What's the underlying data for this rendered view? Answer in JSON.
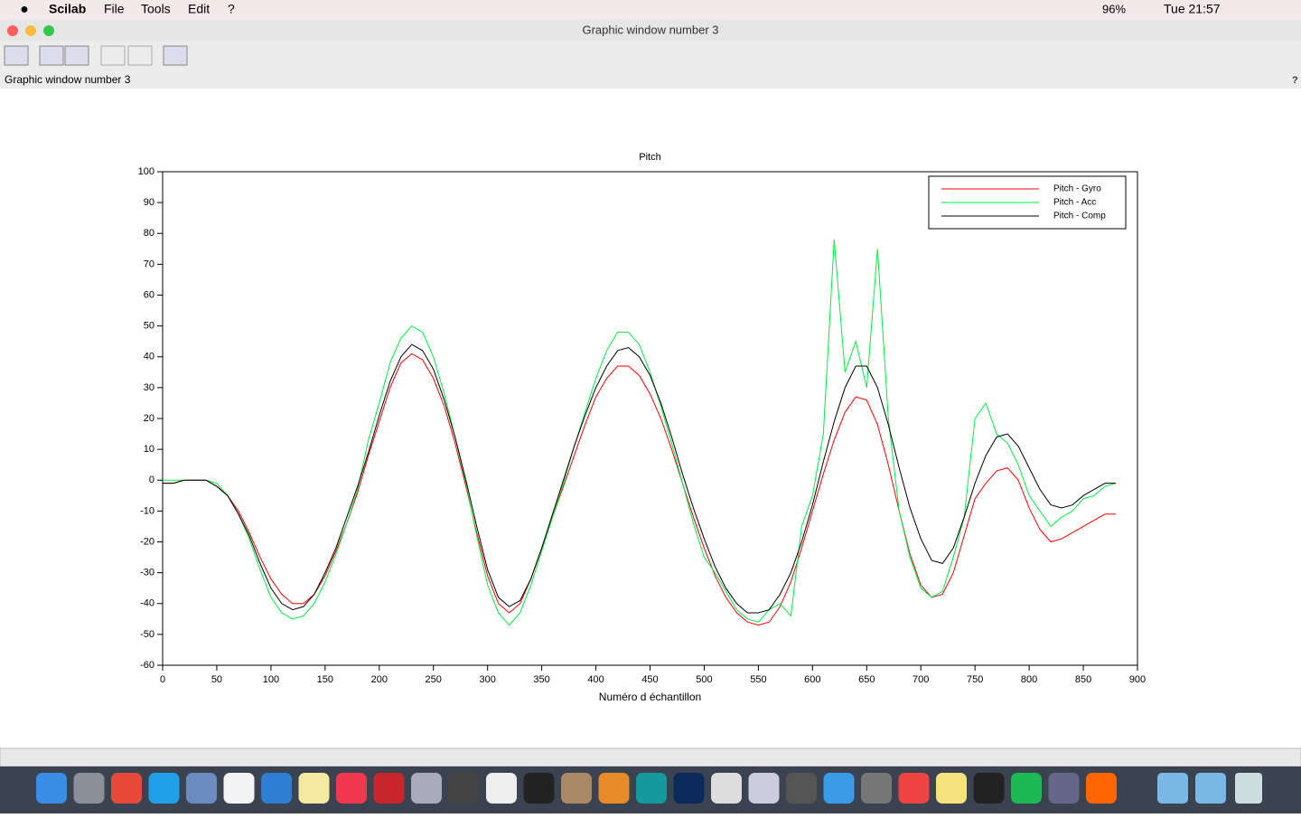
{
  "menubar": {
    "app": "Scilab",
    "menus": [
      "File",
      "Tools",
      "Edit",
      "?"
    ],
    "battery": "96%",
    "clock": "Tue 21:57"
  },
  "window": {
    "title": "Graphic window number 3",
    "label": "Graphic window number 3",
    "help": "?"
  },
  "chart_data": {
    "type": "line",
    "title": "Pitch",
    "x_label": "Numéro d échantillon",
    "x": [
      0,
      10,
      20,
      30,
      40,
      50,
      60,
      70,
      80,
      90,
      100,
      110,
      120,
      130,
      140,
      150,
      160,
      170,
      180,
      190,
      200,
      210,
      220,
      230,
      240,
      250,
      260,
      270,
      280,
      290,
      300,
      310,
      320,
      330,
      340,
      350,
      360,
      370,
      380,
      390,
      400,
      410,
      420,
      430,
      440,
      450,
      460,
      470,
      480,
      490,
      500,
      510,
      520,
      530,
      540,
      550,
      560,
      570,
      580,
      590,
      600,
      610,
      620,
      630,
      640,
      650,
      660,
      670,
      680,
      690,
      700,
      710,
      720,
      730,
      740,
      750,
      760,
      770,
      780,
      790,
      800,
      810,
      820,
      830,
      840,
      850,
      860,
      870,
      880
    ],
    "series": [
      {
        "name": "Pitch - Gyro",
        "color": "#ff0000",
        "values": [
          -1,
          -1,
          0,
          0,
          0,
          -2,
          -5,
          -10,
          -17,
          -25,
          -32,
          -37,
          -40,
          -40,
          -37,
          -31,
          -23,
          -14,
          -4,
          8,
          19,
          30,
          38,
          41,
          39,
          33,
          24,
          12,
          -2,
          -17,
          -31,
          -40,
          -43,
          -40,
          -32,
          -22,
          -12,
          -2,
          8,
          18,
          27,
          33,
          37,
          37,
          34,
          28,
          20,
          10,
          -1,
          -12,
          -22,
          -31,
          -38,
          -43,
          -46,
          -47,
          -46,
          -41,
          -33,
          -22,
          -10,
          2,
          13,
          22,
          27,
          26,
          18,
          5,
          -10,
          -24,
          -34,
          -38,
          -37,
          -30,
          -18,
          -6,
          -1,
          3,
          4,
          0,
          -9,
          -16,
          -20,
          -19,
          -17,
          -15,
          -13,
          -11,
          -11
        ]
      },
      {
        "name": "Pitch - Acc",
        "color": "#00ee44",
        "values": [
          0,
          0,
          0,
          0,
          0,
          -1,
          -5,
          -11,
          -19,
          -29,
          -38,
          -43,
          -45,
          -44,
          -40,
          -33,
          -24,
          -14,
          -3,
          13,
          25,
          38,
          46,
          50,
          48,
          40,
          28,
          14,
          -1,
          -18,
          -34,
          -43,
          -47,
          -43,
          -34,
          -23,
          -12,
          -1,
          11,
          22,
          33,
          42,
          48,
          48,
          44,
          35,
          24,
          12,
          -1,
          -14,
          -25,
          -30,
          -36,
          -42,
          -45,
          -46,
          -42,
          -40,
          -44,
          -15,
          -5,
          15,
          78,
          35,
          45,
          30,
          75,
          20,
          -10,
          -25,
          -35,
          -38,
          -36,
          -25,
          -12,
          20,
          25,
          15,
          12,
          5,
          -5,
          -10,
          -15,
          -12,
          -10,
          -6,
          -5,
          -2,
          -1
        ]
      },
      {
        "name": "Pitch - Comp",
        "color": "#000000",
        "values": [
          -1,
          -1,
          0,
          0,
          0,
          -2,
          -5,
          -11,
          -18,
          -27,
          -35,
          -40,
          -42,
          -41,
          -37,
          -30,
          -22,
          -12,
          -2,
          9,
          21,
          32,
          40,
          44,
          42,
          36,
          26,
          14,
          0,
          -15,
          -29,
          -38,
          -41,
          -39,
          -32,
          -22,
          -11,
          0,
          11,
          21,
          30,
          37,
          42,
          43,
          40,
          34,
          25,
          14,
          2,
          -9,
          -19,
          -28,
          -35,
          -40,
          -43,
          -43,
          -42,
          -37,
          -30,
          -20,
          -8,
          6,
          19,
          30,
          37,
          37,
          30,
          18,
          4,
          -9,
          -19,
          -26,
          -27,
          -22,
          -12,
          -1,
          8,
          14,
          15,
          11,
          4,
          -3,
          -8,
          -9,
          -8,
          -5,
          -3,
          -1,
          -1
        ]
      }
    ],
    "xlim": [
      0,
      900
    ],
    "xticks": [
      0,
      50,
      100,
      150,
      200,
      250,
      300,
      350,
      400,
      450,
      500,
      550,
      600,
      650,
      700,
      750,
      800,
      850,
      900
    ],
    "ylim": [
      -60,
      100
    ],
    "yticks": [
      -60,
      -50,
      -40,
      -30,
      -20,
      -10,
      0,
      10,
      20,
      30,
      40,
      50,
      60,
      70,
      80,
      90,
      100
    ],
    "legend": "upper right",
    "grid": false
  }
}
